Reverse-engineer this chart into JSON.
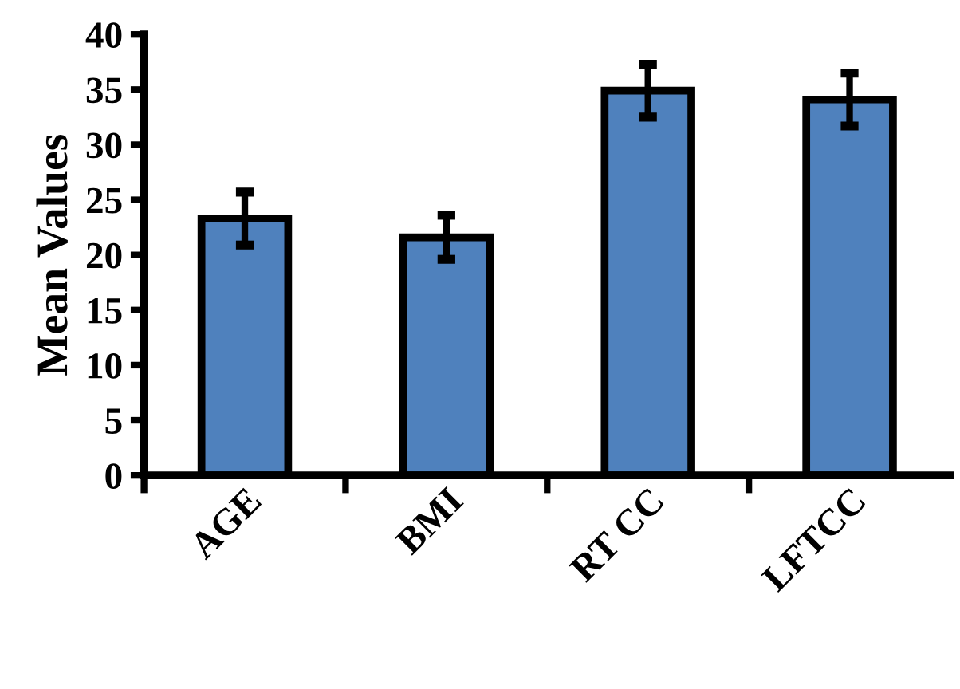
{
  "chart_data": {
    "type": "bar",
    "ylabel": "Mean Values",
    "categories": [
      "AGE",
      "BMI",
      "RT CC",
      "LFTCC"
    ],
    "values": [
      23.3,
      21.6,
      34.9,
      34.1
    ],
    "errors": [
      2.4,
      2.0,
      2.4,
      2.4
    ],
    "color": "#4f81bd",
    "ylim": [
      0,
      40
    ],
    "yticks": [
      0,
      5,
      10,
      15,
      20,
      25,
      30,
      35,
      40
    ],
    "grid": false,
    "legend": false
  }
}
